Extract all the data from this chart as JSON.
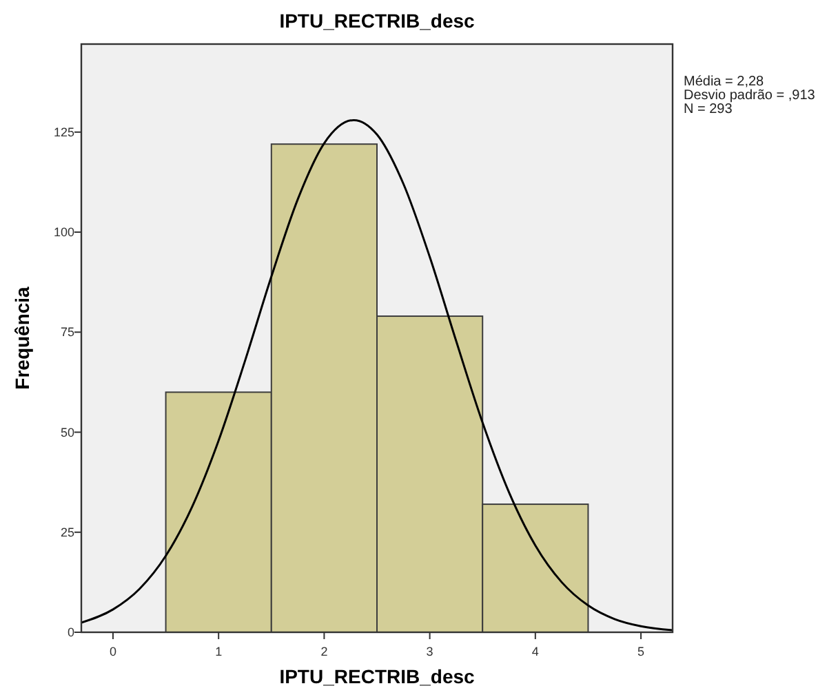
{
  "chart_data": {
    "type": "histogram",
    "title": "IPTU_RECTRIB_desc",
    "xlabel": "IPTU_RECTRIB_desc",
    "ylabel": "Frequência",
    "bins": [
      0.5,
      1.5,
      2.5,
      3.5,
      4.5
    ],
    "values": [
      60,
      122,
      79,
      32
    ],
    "color": "#d3ce97",
    "series": [
      {
        "type": "line",
        "color": "#000000",
        "x": [
          -0.3,
          0,
          0.25,
          0.5,
          0.75,
          1,
          1.25,
          1.5,
          1.75,
          2,
          2.28,
          2.5,
          2.75,
          3,
          3.25,
          3.5,
          3.75,
          4,
          4.25,
          4.5,
          4.75,
          5,
          5.3
        ],
        "values": [
          2.4,
          5.7,
          10.8,
          19.1,
          31.4,
          47.9,
          67.8,
          88.9,
          108.2,
          122.2,
          128,
          124.4,
          112.1,
          93.8,
          72.8,
          52.4,
          35,
          21.7,
          12.5,
          6.7,
          3.3,
          1.5,
          0.5
        ]
      }
    ],
    "xlim": [
      -0.3,
      5.3
    ],
    "ylim": [
      0,
      147
    ],
    "xticks": [
      0,
      1,
      2,
      3,
      4,
      5
    ],
    "yticks": [
      0,
      25,
      50,
      75,
      100,
      125
    ],
    "annotations": [
      "Média = 2,28",
      "Desvio padrão = ,913",
      "N = 293"
    ]
  }
}
